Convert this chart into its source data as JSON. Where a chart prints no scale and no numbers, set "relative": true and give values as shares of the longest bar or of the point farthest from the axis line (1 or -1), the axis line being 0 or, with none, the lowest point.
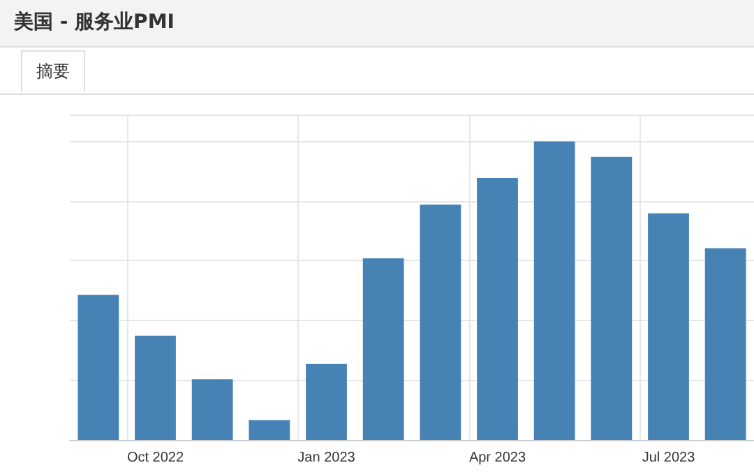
{
  "chart_data": {
    "type": "bar",
    "title": "美国 - 服务业PMI",
    "annotations": [
      "摘要"
    ],
    "categories": [
      null,
      "Oct 2022",
      null,
      null,
      "Jan 2023",
      null,
      null,
      "Apr 2023",
      null,
      null,
      "Jul 2023",
      null
    ],
    "values": [
      0.486,
      0.349,
      0.203,
      0.066,
      0.255,
      0.608,
      0.788,
      0.877,
      1,
      0.948,
      0.759,
      0.642
    ],
    "color": "#4682b4",
    "relative": true,
    "grid": true
  }
}
